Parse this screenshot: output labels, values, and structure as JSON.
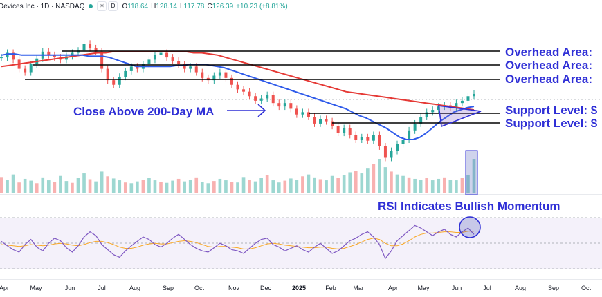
{
  "header": {
    "title": "Devices Inc · 1D · NASDAQ",
    "open_label": "O",
    "open": "118.64",
    "high_label": "H",
    "high": "128.14",
    "low_label": "L",
    "low": "117.78",
    "close_label": "C",
    "close": "126.39",
    "change": "+10.23 (+8.81%)"
  },
  "annotations": {
    "overhead_1": "Overhead Area:",
    "overhead_2": "Overhead Area:",
    "overhead_3": "Overhead Area:",
    "support_1": "Support Level: $",
    "support_2": "Support Level: $",
    "close_above": "Close Above 200-Day MA",
    "rsi_note": "RSI Indicates Bullish Momentum"
  },
  "colors": {
    "up": "#26a69a",
    "down": "#ef5350",
    "ma200": "#e53935",
    "ma50": "#2f5bea",
    "annotation": "#2f2fd6",
    "rsi": "#7e57c2",
    "rsi_ma": "#f9a825",
    "rsi_band": "#ede7f6"
  },
  "chart_data": [
    {
      "type": "line",
      "x_tick_labels": [
        "Apr",
        "May",
        "Jun",
        "Jul",
        "Aug",
        "Sep",
        "Oct",
        "Nov",
        "Dec",
        "2025",
        "Feb",
        "Mar",
        "Apr",
        "May",
        "Jun",
        "Jul",
        "Aug",
        "Sep",
        "Oct"
      ],
      "series": [
        {
          "values": [
            158,
            162,
            156,
            148,
            145,
            152,
            157,
            163,
            160,
            158,
            156,
            159,
            162,
            164,
            170,
            166,
            163,
            148,
            138,
            134,
            141,
            146,
            150,
            148,
            152,
            156,
            160,
            162,
            158,
            155,
            152,
            148,
            150,
            145,
            140,
            138,
            142,
            145,
            140,
            134,
            130,
            128,
            124,
            120,
            122,
            125,
            118,
            115,
            118,
            113,
            108,
            110,
            106,
            100,
            104,
            102,
            98,
            92,
            96,
            90,
            86,
            88,
            85,
            90,
            80,
            70,
            76,
            82,
            86,
            94,
            100,
            106,
            110,
            112,
            115,
            116,
            114,
            118,
            120,
            124,
            126
          ]
        },
        {
          "values": [
            160,
            161,
            161,
            160,
            160,
            160,
            160,
            160,
            160,
            160,
            160,
            160,
            160,
            159,
            159,
            159,
            158,
            156,
            154,
            152,
            150,
            150,
            150,
            150,
            150,
            150,
            151,
            151,
            152,
            152,
            152,
            151,
            150,
            149,
            147,
            145,
            143,
            141,
            139,
            137,
            135,
            133,
            131,
            129,
            127,
            125,
            123,
            121,
            119,
            117,
            115,
            113,
            110,
            107,
            105,
            102,
            99,
            96,
            92,
            88,
            86,
            86,
            88,
            92,
            97,
            102,
            106,
            110,
            112,
            114,
            115
          ]
        },
        {
          "values": [
            150,
            151,
            152,
            153,
            154,
            155,
            156,
            157,
            158,
            159,
            160,
            161,
            162,
            162,
            163,
            163,
            163,
            163,
            163,
            163,
            163,
            163,
            163,
            163,
            162,
            162,
            161,
            160,
            158,
            156,
            154,
            152,
            150,
            148,
            146,
            144,
            142,
            140,
            138,
            136,
            134,
            132,
            130,
            128,
            127,
            126,
            125,
            124,
            123,
            122,
            121,
            120,
            119,
            118,
            117,
            116,
            115,
            114,
            113,
            112
          ]
        }
      ]
    },
    {
      "type": "bar",
      "values": [
        45,
        38,
        52,
        30,
        40,
        35,
        28,
        44,
        36,
        31,
        48,
        34,
        29,
        42,
        55,
        39,
        33,
        60,
        47,
        41,
        36,
        30,
        28,
        33,
        38,
        42,
        36,
        31,
        29,
        35,
        40,
        33,
        37,
        44,
        31,
        28,
        34,
        40,
        36,
        32,
        30,
        45,
        38,
        33,
        42,
        50,
        36,
        30,
        35,
        41,
        38,
        47,
        52,
        44,
        39,
        36,
        48,
        43,
        50,
        58,
        62,
        55,
        70,
        80,
        95,
        72,
        60,
        52,
        48,
        44,
        40,
        38,
        42,
        36,
        40,
        44,
        38,
        36,
        42,
        50,
        95
      ]
    },
    {
      "type": "line",
      "ylim": [
        0,
        100
      ],
      "series": [
        {
          "values": [
            55,
            48,
            42,
            38,
            50,
            58,
            46,
            40,
            52,
            60,
            56,
            45,
            38,
            48,
            62,
            70,
            64,
            50,
            42,
            34,
            30,
            40,
            48,
            55,
            62,
            58,
            50,
            46,
            52,
            60,
            66,
            58,
            50,
            44,
            40,
            38,
            45,
            52,
            48,
            42,
            40,
            36,
            44,
            52,
            58,
            60,
            50,
            46,
            40,
            44,
            48,
            42,
            38,
            46,
            52,
            44,
            36,
            40,
            48,
            56,
            60,
            66,
            70,
            62,
            50,
            28,
            40,
            56,
            64,
            72,
            80,
            76,
            70,
            64,
            70,
            74,
            66,
            62,
            70,
            76,
            66
          ]
        },
        {
          "values": [
            50,
            49,
            48,
            47,
            48,
            50,
            49,
            48,
            49,
            51,
            52,
            51,
            49,
            48,
            50,
            53,
            55,
            55,
            53,
            50,
            46,
            44,
            44,
            46,
            49,
            51,
            52,
            51,
            51,
            53,
            55,
            56,
            55,
            53,
            50,
            47,
            46,
            47,
            47,
            46,
            45,
            43,
            43,
            45,
            48,
            51,
            52,
            51,
            49,
            48,
            47,
            46,
            45,
            45,
            46,
            46,
            44,
            43,
            44,
            47,
            50,
            54,
            58,
            60,
            58,
            52,
            48,
            48,
            51,
            56,
            62,
            66,
            68,
            68,
            69,
            70,
            70,
            69,
            69,
            71,
            71
          ]
        }
      ]
    }
  ]
}
